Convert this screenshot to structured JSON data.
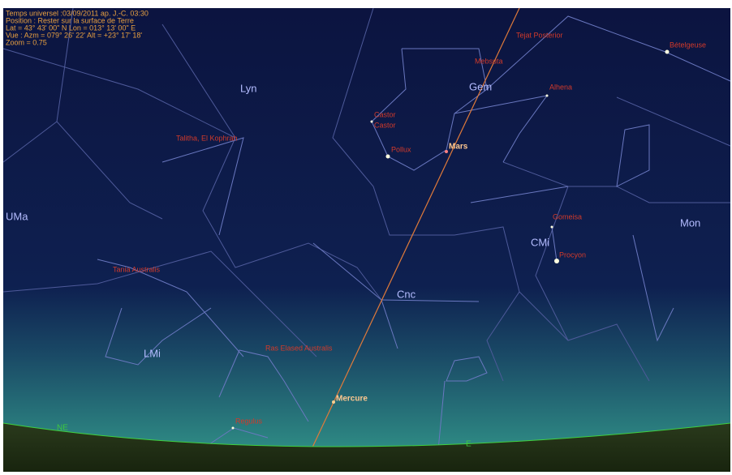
{
  "info": {
    "lines": [
      "Temps universel :03/09/2011 ap. J.-C. 03:30",
      "Position : Rester sur la surface de Terre",
      "Lat = 43° 43' 00\" N Lon = 013° 13' 00\" E",
      "Vue : Azm = 079° 26' 22' Alt = +23° 17' 18'",
      "Zoom = 0.75"
    ]
  },
  "constellations": [
    "Lyn",
    "Gem",
    "UMa",
    "CMi",
    "Mon",
    "Cnc",
    "LMi"
  ],
  "stars": [
    "Tejat Posterior",
    "Bételgeuse",
    "Mebsuta",
    "Alhena",
    "Castor",
    "Castor",
    "Pollux",
    "Talitha, El Kophrah",
    "Gomeisa",
    "Procyon",
    "Tania Australis",
    "Ras Elased Australis",
    "Regulus"
  ],
  "planets": [
    "Mars",
    "Mercure"
  ],
  "cardinals": [
    "NE",
    "E"
  ]
}
